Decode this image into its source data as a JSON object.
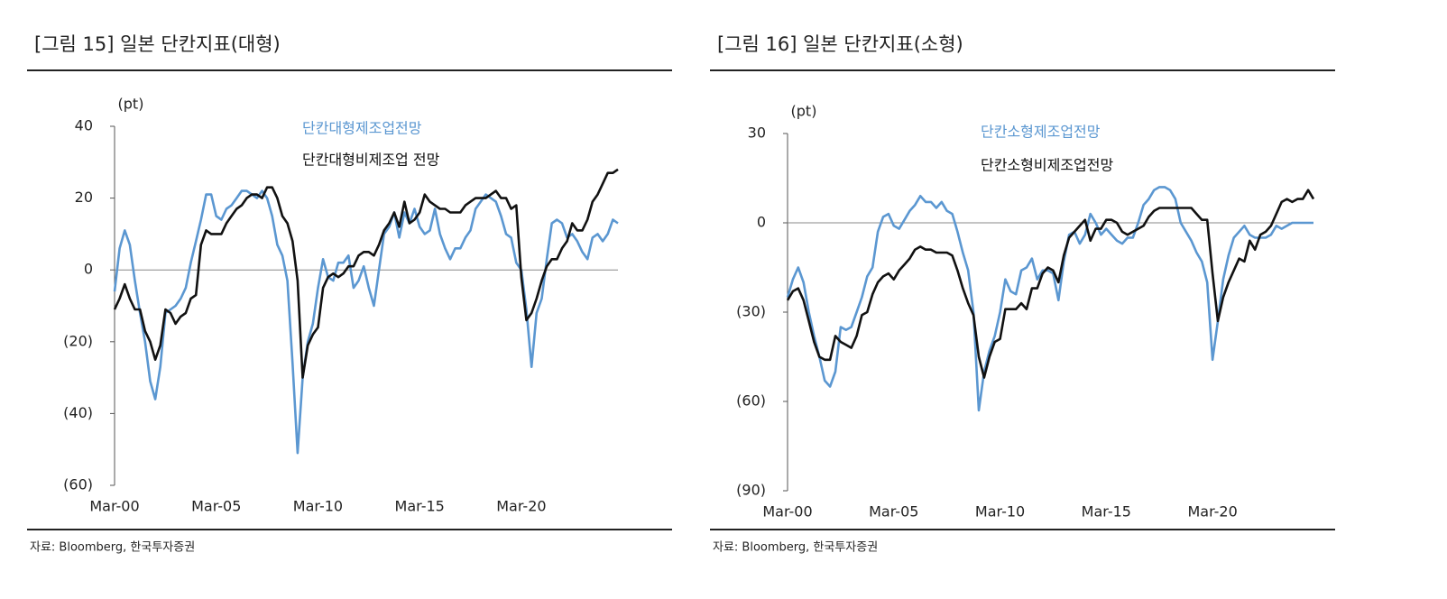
{
  "chart_data": [
    {
      "type": "line",
      "title": "[그림 15] 일본 단칸지표(대형)",
      "y_unit": "(pt)",
      "source": "자료: Bloomberg, 한국투자증권",
      "categories": [
        "Mar-00",
        null,
        null,
        null,
        null,
        null,
        null,
        null,
        null,
        null,
        null,
        null,
        null,
        null,
        null,
        null,
        null,
        null,
        null,
        null,
        "Mar-05",
        null,
        null,
        null,
        null,
        null,
        null,
        null,
        null,
        null,
        null,
        null,
        null,
        null,
        null,
        null,
        null,
        null,
        null,
        null,
        "Mar-10",
        null,
        null,
        null,
        null,
        null,
        null,
        null,
        null,
        null,
        null,
        null,
        null,
        null,
        null,
        null,
        null,
        null,
        null,
        null,
        "Mar-15",
        null,
        null,
        null,
        null,
        null,
        null,
        null,
        null,
        null,
        null,
        null,
        null,
        null,
        null,
        null,
        null,
        null,
        null,
        null,
        "Mar-20",
        null,
        null,
        null,
        null,
        null,
        null,
        null,
        null,
        null,
        null,
        null,
        null,
        null,
        null,
        null,
        null,
        null,
        null,
        null
      ],
      "ylim": [
        -60,
        40
      ],
      "yticks": [
        {
          "value": -60,
          "label": "(60)"
        },
        {
          "value": -40,
          "label": "(40)"
        },
        {
          "value": -20,
          "label": "(20)"
        },
        0,
        20,
        40
      ],
      "series": [
        {
          "name": "단칸대형제조업전망",
          "color": "#5b97d1",
          "values": [
            -6,
            6,
            11,
            7,
            -3,
            -12,
            -20,
            -31,
            -36,
            -27,
            -12,
            -11,
            -10,
            -8,
            -5,
            2,
            8,
            14,
            21,
            21,
            15,
            14,
            17,
            18,
            20,
            22,
            22,
            21,
            20,
            22,
            20,
            15,
            7,
            4,
            -3,
            -26,
            -51,
            -30,
            -20,
            -15,
            -5,
            3,
            -2,
            -3,
            2,
            2,
            4,
            -5,
            -3,
            1,
            -5,
            -10,
            0,
            10,
            12,
            16,
            9,
            16,
            13,
            17,
            12,
            10,
            11,
            17,
            10,
            6,
            3,
            6,
            6,
            9,
            11,
            17,
            19,
            21,
            20,
            19,
            15,
            10,
            9,
            2,
            0,
            -11,
            -27,
            -12,
            -8,
            3,
            13,
            14,
            13,
            9,
            10,
            8,
            5,
            3,
            9,
            10,
            8,
            10,
            14,
            13
          ]
        },
        {
          "name": "단칸대형비제조업 전망",
          "color": "#111111",
          "values": [
            -11,
            -8,
            -4,
            -8,
            -11,
            -11,
            -17,
            -20,
            -25,
            -21,
            -11,
            -12,
            -15,
            -13,
            -12,
            -8,
            -7,
            7,
            11,
            10,
            10,
            10,
            13,
            15,
            17,
            18,
            20,
            21,
            21,
            20,
            23,
            23,
            20,
            15,
            13,
            8,
            -3,
            -30,
            -21,
            -18,
            -16,
            -5,
            -2,
            -1,
            -2,
            -1,
            1,
            1,
            4,
            5,
            5,
            4,
            7,
            11,
            13,
            16,
            12,
            19,
            13,
            14,
            16,
            21,
            19,
            18,
            17,
            17,
            16,
            16,
            16,
            18,
            19,
            20,
            20,
            20,
            21,
            22,
            20,
            20,
            17,
            18,
            -2,
            -14,
            -12,
            -8,
            -3,
            1,
            3,
            3,
            6,
            8,
            13,
            11,
            11,
            14,
            19,
            21,
            24,
            27,
            27,
            28
          ]
        }
      ]
    },
    {
      "type": "line",
      "title": "[그림 16] 일본 단칸지표(소형)",
      "y_unit": "(pt)",
      "source": "자료: Bloomberg, 한국투자증권",
      "categories": [
        "Mar-00",
        null,
        null,
        null,
        null,
        null,
        null,
        null,
        null,
        null,
        null,
        null,
        null,
        null,
        null,
        null,
        null,
        null,
        null,
        null,
        "Mar-05",
        null,
        null,
        null,
        null,
        null,
        null,
        null,
        null,
        null,
        null,
        null,
        null,
        null,
        null,
        null,
        null,
        null,
        null,
        null,
        "Mar-10",
        null,
        null,
        null,
        null,
        null,
        null,
        null,
        null,
        null,
        null,
        null,
        null,
        null,
        null,
        null,
        null,
        null,
        null,
        null,
        "Mar-15",
        null,
        null,
        null,
        null,
        null,
        null,
        null,
        null,
        null,
        null,
        null,
        null,
        null,
        null,
        null,
        null,
        null,
        null,
        null,
        "Mar-20",
        null,
        null,
        null,
        null,
        null,
        null,
        null,
        null,
        null,
        null,
        null,
        null,
        null,
        null,
        null,
        null,
        null,
        null,
        null
      ],
      "ylim": [
        -90,
        30
      ],
      "yticks": [
        {
          "value": -90,
          "label": "(90)"
        },
        {
          "value": -60,
          "label": "(60)"
        },
        {
          "value": -30,
          "label": "(30)"
        },
        0,
        30
      ],
      "series": [
        {
          "name": "단칸소형제조업전망",
          "color": "#5b97d1",
          "values": [
            -25,
            -19,
            -15,
            -20,
            -30,
            -38,
            -45,
            -53,
            -55,
            -50,
            -35,
            -36,
            -35,
            -30,
            -25,
            -18,
            -15,
            -3,
            2,
            3,
            -1,
            -2,
            1,
            4,
            6,
            9,
            7,
            7,
            5,
            7,
            4,
            3,
            -3,
            -10,
            -16,
            -30,
            -63,
            -50,
            -43,
            -38,
            -30,
            -19,
            -23,
            -24,
            -16,
            -15,
            -12,
            -19,
            -16,
            -16,
            -17,
            -26,
            -13,
            -4,
            -3,
            -7,
            -4,
            3,
            0,
            -4,
            -2,
            -4,
            -6,
            -7,
            -5,
            -5,
            0,
            6,
            8,
            11,
            12,
            12,
            11,
            8,
            0,
            -3,
            -6,
            -10,
            -13,
            -20,
            -46,
            -33,
            -19,
            -11,
            -5,
            -3,
            -1,
            -4,
            -5,
            -5,
            -5,
            -4,
            -1,
            -2,
            -1,
            0,
            0,
            0,
            0,
            0
          ]
        },
        {
          "name": "단칸소형비제조업전망",
          "color": "#111111",
          "values": [
            -26,
            -23,
            -22,
            -26,
            -33,
            -40,
            -45,
            -46,
            -46,
            -38,
            -40,
            -41,
            -42,
            -38,
            -31,
            -30,
            -24,
            -20,
            -18,
            -17,
            -19,
            -16,
            -14,
            -12,
            -9,
            -8,
            -9,
            -9,
            -10,
            -10,
            -10,
            -11,
            -16,
            -22,
            -27,
            -31,
            -45,
            -52,
            -45,
            -40,
            -39,
            -29,
            -29,
            -29,
            -27,
            -29,
            -22,
            -22,
            -17,
            -15,
            -16,
            -20,
            -11,
            -5,
            -3,
            -1,
            1,
            -6,
            -2,
            -2,
            1,
            1,
            0,
            -3,
            -4,
            -3,
            -2,
            -1,
            2,
            4,
            5,
            5,
            5,
            5,
            5,
            5,
            5,
            3,
            1,
            1,
            -17,
            -33,
            -25,
            -20,
            -16,
            -12,
            -13,
            -6,
            -9,
            -4,
            -3,
            -1,
            3,
            7,
            8,
            7,
            8,
            8,
            11,
            8
          ]
        }
      ]
    }
  ]
}
